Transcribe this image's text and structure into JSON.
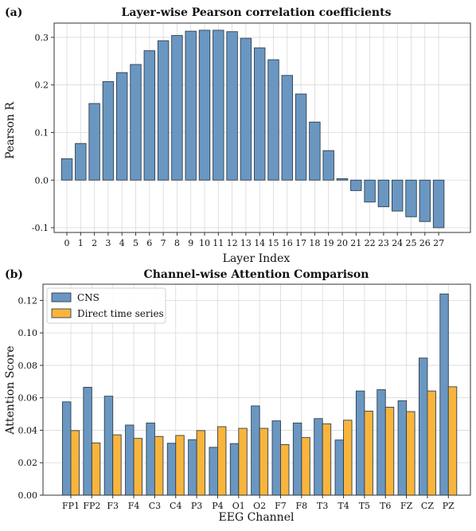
{
  "chart_data": [
    {
      "type": "bar",
      "panel_tag": "(a)",
      "title": "Layer-wise Pearson correlation coefficients",
      "xlabel": "Layer Index",
      "ylabel": "Pearson R",
      "categories": [
        "0",
        "1",
        "2",
        "3",
        "4",
        "5",
        "6",
        "7",
        "8",
        "9",
        "10",
        "11",
        "12",
        "13",
        "14",
        "15",
        "16",
        "17",
        "18",
        "19",
        "20",
        "21",
        "22",
        "23",
        "24",
        "25",
        "26",
        "27"
      ],
      "values": [
        0.045,
        0.077,
        0.161,
        0.207,
        0.226,
        0.243,
        0.272,
        0.293,
        0.304,
        0.313,
        0.315,
        0.315,
        0.312,
        0.298,
        0.278,
        0.253,
        0.22,
        0.181,
        0.122,
        0.062,
        0.003,
        -0.022,
        -0.046,
        -0.056,
        -0.065,
        -0.077,
        -0.087,
        -0.1
      ],
      "ylim": [
        -0.11,
        0.33
      ],
      "yticks": [
        "-0.1",
        "0.0",
        "0.1",
        "0.2",
        "0.3"
      ],
      "grid": true,
      "colors": {
        "bar": "#6a97c1",
        "edge": "#2f3f52"
      }
    },
    {
      "type": "bar",
      "panel_tag": "(b)",
      "title": "Channel-wise Attention Comparison",
      "xlabel": "EEG Channel",
      "ylabel": "Attention Score",
      "categories": [
        "FP1",
        "FP2",
        "F3",
        "F4",
        "C3",
        "C4",
        "P3",
        "P4",
        "O1",
        "O2",
        "F7",
        "F8",
        "T3",
        "T4",
        "T5",
        "T6",
        "FZ",
        "CZ",
        "PZ"
      ],
      "series": [
        {
          "name": "CNS",
          "color": "#6a97c1",
          "values": [
            0.0575,
            0.0665,
            0.061,
            0.0432,
            0.0445,
            0.032,
            0.0342,
            0.0295,
            0.0318,
            0.055,
            0.0458,
            0.0445,
            0.0472,
            0.034,
            0.0642,
            0.065,
            0.0582,
            0.0845,
            0.124
          ]
        },
        {
          "name": "Direct time series",
          "color": "#f9b53b",
          "values": [
            0.0398,
            0.0322,
            0.0372,
            0.035,
            0.0362,
            0.0368,
            0.0398,
            0.0422,
            0.0412,
            0.0412,
            0.0312,
            0.0355,
            0.044,
            0.0462,
            0.0518,
            0.0542,
            0.0515,
            0.0642,
            0.0668
          ]
        }
      ],
      "ylim": [
        0.0,
        0.13
      ],
      "yticks": [
        "0.00",
        "0.02",
        "0.04",
        "0.06",
        "0.08",
        "0.10",
        "0.12"
      ],
      "grid": true,
      "legend_position": "top-left",
      "edge_color": "#2f3f52"
    }
  ]
}
